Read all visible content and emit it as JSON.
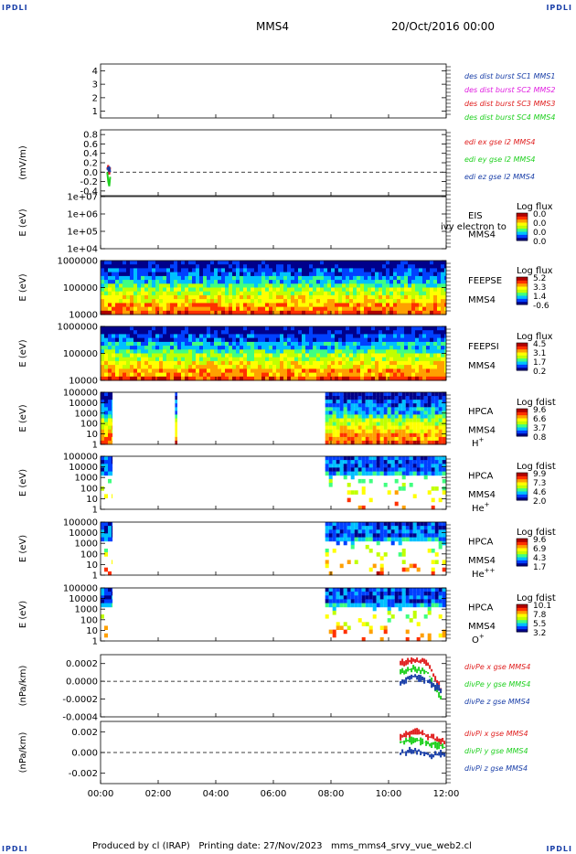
{
  "header": {
    "left_label": "IPDLI",
    "right_label": "IPDLI",
    "title": "MMS4",
    "date": "20/Oct/2016 00:00"
  },
  "footer": {
    "credit": "Produced by cl (IRAP)   Printing date: 27/Nov/2023   mms_mms4_srvy_vue_web2.cl",
    "left_label": "IPDLI",
    "right_label": "IPDLI"
  },
  "colors": {
    "red": "#e02020",
    "magenta": "#e020e0",
    "green": "#20d020",
    "blue": "#1a3fa8",
    "flux_scale": [
      "#00008b",
      "#0040ff",
      "#00c0ff",
      "#40ff80",
      "#c0ff00",
      "#ffff00",
      "#ffa000",
      "#ff3000",
      "#b00000"
    ]
  },
  "chart_data": [
    {
      "type": "line",
      "title": "",
      "ylabel": "",
      "ylim": [
        0.5,
        4.5
      ],
      "yticks": [
        "1",
        "2",
        "3",
        "4"
      ],
      "legend_position": "right",
      "legend": [
        {
          "text": "des dist burst SC1 MMS1",
          "color": "#1a3fa8"
        },
        {
          "text": "des dist burst SC2 MMS2",
          "color": "#e020e0"
        },
        {
          "text": "des dist burst SC3 MMS3",
          "color": "#e02020"
        },
        {
          "text": "des dist burst SC4 MMS4",
          "color": "#20d020"
        }
      ],
      "series": []
    },
    {
      "type": "line",
      "ylabel": "(mV/m)",
      "ylim": [
        -0.5,
        0.9
      ],
      "yticks": [
        "0.8",
        "0.6",
        "0.4",
        "0.2",
        "0.0",
        "-0.2",
        "-0.4"
      ],
      "zero_line": true,
      "legend_position": "right",
      "legend": [
        {
          "text": "edi ex gse l2 MMS4",
          "color": "#e02020"
        },
        {
          "text": "edi ey gse l2 MMS4",
          "color": "#20d020"
        },
        {
          "text": "edi ez gse l2 MMS4",
          "color": "#1a3fa8"
        }
      ],
      "series": [
        {
          "color": "#e02020",
          "x": [
            "00:14",
            "00:16",
            "00:18",
            "00:20"
          ],
          "y": [
            0.05,
            0.15,
            -0.05,
            0.1
          ]
        },
        {
          "color": "#20d020",
          "x": [
            "00:14",
            "00:16",
            "00:18",
            "00:20"
          ],
          "y": [
            0.0,
            -0.2,
            -0.3,
            -0.1
          ]
        },
        {
          "color": "#1a3fa8",
          "x": [
            "00:14",
            "00:16",
            "00:18",
            "00:20"
          ],
          "y": [
            0.1,
            0.05,
            0.12,
            0.0
          ]
        }
      ]
    },
    {
      "type": "heatmap",
      "ylabel": "E (eV)",
      "yscale": "log",
      "ylim": [
        10000.0,
        10000000.0
      ],
      "yticks": [
        "1e+07",
        "1e+06",
        "1e+05",
        "1e+04"
      ],
      "instrument": "EIS",
      "spacecraft": "MMS4",
      "overlay_text": "ivy electron to",
      "colorbar": {
        "label": "Log flux",
        "ticks": [
          "0.0",
          "0.0",
          "0.0",
          "0.0"
        ]
      },
      "intervals": []
    },
    {
      "type": "heatmap",
      "ylabel": "E (eV)",
      "yscale": "log",
      "ylim": [
        10000.0,
        1000000.0
      ],
      "yticks": [
        "1000000",
        "100000",
        "10000"
      ],
      "instrument": "FEEPSE",
      "spacecraft": "MMS4",
      "colorbar": {
        "label": "Log flux",
        "ticks": [
          "5.2",
          "3.3",
          "1.4",
          "-0.6"
        ]
      },
      "intervals": [
        {
          "start": "00:00",
          "end": "12:00"
        }
      ]
    },
    {
      "type": "heatmap",
      "ylabel": "E (eV)",
      "yscale": "log",
      "ylim": [
        10000.0,
        1000000.0
      ],
      "yticks": [
        "1000000",
        "100000",
        "10000"
      ],
      "instrument": "FEEPSI",
      "spacecraft": "MMS4",
      "colorbar": {
        "label": "Log flux",
        "ticks": [
          "4.5",
          "3.1",
          "1.7",
          "0.2"
        ]
      },
      "intervals": [
        {
          "start": "00:00",
          "end": "12:00"
        }
      ]
    },
    {
      "type": "heatmap",
      "ylabel": "E (eV)",
      "yscale": "log",
      "ylim": [
        1,
        100000.0
      ],
      "yticks": [
        "100000",
        "10000",
        "1000",
        "100",
        "10",
        "1"
      ],
      "instrument": "HPCA",
      "spacecraft": "MMS4",
      "species": "H",
      "species_charge": "+",
      "colorbar": {
        "label": "Log fdist",
        "ticks": [
          "9.6",
          "6.6",
          "3.7",
          "0.8"
        ]
      },
      "intervals": [
        {
          "start": "00:00",
          "end": "00:25"
        },
        {
          "start": "02:35",
          "end": "02:40"
        },
        {
          "start": "07:48",
          "end": "12:00"
        }
      ]
    },
    {
      "type": "heatmap",
      "ylabel": "E (eV)",
      "yscale": "log",
      "ylim": [
        1,
        100000.0
      ],
      "yticks": [
        "100000",
        "10000",
        "1000",
        "100",
        "10",
        "1"
      ],
      "instrument": "HPCA",
      "spacecraft": "MMS4",
      "species": "He",
      "species_charge": "+",
      "colorbar": {
        "label": "Log fdist",
        "ticks": [
          "9.9",
          "7.3",
          "4.6",
          "2.0"
        ]
      },
      "intervals": [
        {
          "start": "00:00",
          "end": "00:25"
        },
        {
          "start": "07:48",
          "end": "12:00"
        }
      ]
    },
    {
      "type": "heatmap",
      "ylabel": "E (eV)",
      "yscale": "log",
      "ylim": [
        1,
        100000.0
      ],
      "yticks": [
        "100000",
        "10000",
        "1000",
        "100",
        "10",
        "1"
      ],
      "instrument": "HPCA",
      "spacecraft": "MMS4",
      "species": "He",
      "species_charge": "++",
      "colorbar": {
        "label": "Log fdist",
        "ticks": [
          "9.6",
          "6.9",
          "4.3",
          "1.7"
        ]
      },
      "intervals": [
        {
          "start": "00:00",
          "end": "00:25"
        },
        {
          "start": "07:48",
          "end": "12:00"
        }
      ]
    },
    {
      "type": "heatmap",
      "ylabel": "E (eV)",
      "yscale": "log",
      "ylim": [
        1,
        100000.0
      ],
      "yticks": [
        "100000",
        "10000",
        "1000",
        "100",
        "10",
        "1"
      ],
      "instrument": "HPCA",
      "spacecraft": "MMS4",
      "species": "O",
      "species_charge": "+",
      "colorbar": {
        "label": "Log fdist",
        "ticks": [
          "10.1",
          "7.8",
          "5.5",
          "3.2"
        ]
      },
      "intervals": [
        {
          "start": "00:00",
          "end": "00:25"
        },
        {
          "start": "07:48",
          "end": "12:00"
        }
      ]
    },
    {
      "type": "line",
      "ylabel": "(nPa/km)",
      "ylim": [
        -0.0004,
        0.0003
      ],
      "yticks": [
        "0.0002",
        "0.0000",
        "-0.0002",
        "-0.0004"
      ],
      "zero_line": true,
      "legend_position": "right",
      "legend": [
        {
          "text": "divPe x gse MMS4",
          "color": "#e02020"
        },
        {
          "text": "divPe y gse MMS4",
          "color": "#20d020"
        },
        {
          "text": "divPe z gse MMS4",
          "color": "#1a3fa8"
        }
      ],
      "series": [
        {
          "color": "#e02020",
          "x": [
            "10:25",
            "11:00",
            "11:30",
            "11:50"
          ],
          "y": [
            0.0002,
            0.00025,
            0.0002,
            -0.0001
          ]
        },
        {
          "color": "#20d020",
          "x": [
            "10:25",
            "11:00",
            "11:30",
            "11:50"
          ],
          "y": [
            0.0001,
            0.00015,
            0.0001,
            -0.0002
          ]
        },
        {
          "color": "#1a3fa8",
          "x": [
            "10:25",
            "11:00",
            "11:30",
            "11:50"
          ],
          "y": [
            0.0,
            5e-05,
            0.0,
            -0.0001
          ]
        }
      ]
    },
    {
      "type": "line",
      "ylabel": "(nPa/km)",
      "ylim": [
        -0.003,
        0.003
      ],
      "yticks": [
        "0.002",
        "0.000",
        "-0.002"
      ],
      "zero_line": true,
      "legend_position": "right",
      "legend": [
        {
          "text": "divPi x gse MMS4",
          "color": "#e02020"
        },
        {
          "text": "divPi y gse MMS4",
          "color": "#20d020"
        },
        {
          "text": "divPi z gse MMS4",
          "color": "#1a3fa8"
        }
      ],
      "xticks": [
        "00:00",
        "02:00",
        "04:00",
        "06:00",
        "08:00",
        "10:00",
        "12:00"
      ],
      "series": [
        {
          "color": "#e02020",
          "x": [
            "10:25",
            "11:00",
            "11:30",
            "12:00"
          ],
          "y": [
            0.0015,
            0.002,
            0.0015,
            0.001
          ]
        },
        {
          "color": "#20d020",
          "x": [
            "10:25",
            "11:00",
            "11:30",
            "12:00"
          ],
          "y": [
            0.001,
            0.0012,
            0.0008,
            0.0005
          ]
        },
        {
          "color": "#1a3fa8",
          "x": [
            "10:25",
            "11:00",
            "11:30",
            "12:00"
          ],
          "y": [
            0.0,
            0.0002,
            -0.0003,
            0.0
          ]
        }
      ]
    }
  ]
}
